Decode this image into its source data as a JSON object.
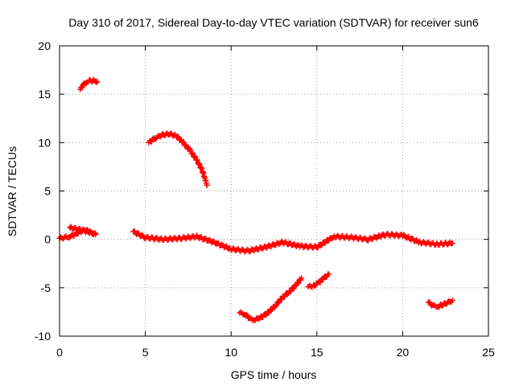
{
  "chart_data": {
    "type": "scatter",
    "title": "Day 310 of 2017, Sidereal Day-to-day VTEC variation (SDTVAR) for receiver sun6",
    "xlabel": "GPS time / hours",
    "ylabel": "SDTVAR / TECUs",
    "xlim": [
      0,
      25
    ],
    "ylim": [
      -10,
      20
    ],
    "xticks": [
      0,
      5,
      10,
      15,
      20,
      25
    ],
    "yticks": [
      -10,
      -5,
      0,
      5,
      10,
      15,
      20
    ],
    "grid": true,
    "marker": "plus",
    "color": "#ff0000",
    "series": [
      {
        "name": "segment-1",
        "x": [
          1.2,
          1.4,
          1.6,
          1.8,
          2.0,
          2.2
        ],
        "y": [
          15.5,
          16.0,
          16.3,
          16.4,
          16.4,
          16.3
        ]
      },
      {
        "name": "segment-2",
        "x": [
          5.2,
          5.6,
          6.0,
          6.4,
          6.8,
          7.2,
          7.6,
          8.0,
          8.3,
          8.6
        ],
        "y": [
          10.0,
          10.5,
          10.8,
          10.9,
          10.7,
          10.0,
          9.2,
          8.2,
          7.2,
          5.6
        ]
      },
      {
        "name": "segment-3a",
        "x": [
          0.0,
          0.3,
          0.6,
          0.9,
          1.2,
          1.5,
          1.8,
          2.1
        ],
        "y": [
          0.1,
          0.2,
          0.3,
          0.5,
          0.8,
          1.0,
          0.7,
          0.5
        ]
      },
      {
        "name": "segment-3b",
        "x": [
          0.6,
          1.0,
          1.4,
          1.8,
          2.1
        ],
        "y": [
          1.2,
          1.1,
          0.9,
          0.7,
          0.6
        ]
      },
      {
        "name": "segment-4",
        "x": [
          4.3,
          5.0,
          6.0,
          7.0,
          8.0,
          9.0,
          10.0,
          11.0,
          12.0,
          13.0,
          14.0,
          15.0,
          16.0,
          17.0,
          18.0,
          19.0,
          20.0,
          21.0,
          22.0,
          22.9
        ],
        "y": [
          0.8,
          0.2,
          0.0,
          0.1,
          0.3,
          -0.3,
          -1.0,
          -1.2,
          -0.8,
          -0.3,
          -0.7,
          -0.8,
          0.3,
          0.2,
          0.0,
          0.5,
          0.4,
          -0.3,
          -0.5,
          -0.4
        ]
      },
      {
        "name": "segment-5",
        "x": [
          10.5,
          10.8,
          11.1,
          11.4,
          11.8,
          12.2,
          12.6,
          13.0,
          13.4,
          13.8,
          14.1
        ],
        "y": [
          -7.6,
          -7.7,
          -8.2,
          -8.3,
          -8.0,
          -7.5,
          -6.8,
          -6.0,
          -5.4,
          -4.7,
          -4.0
        ]
      },
      {
        "name": "segment-6",
        "x": [
          14.5,
          14.8,
          15.1,
          15.4,
          15.7
        ],
        "y": [
          -4.9,
          -4.8,
          -4.5,
          -4.0,
          -3.6
        ]
      },
      {
        "name": "segment-7",
        "x": [
          21.5,
          21.8,
          22.1,
          22.4,
          22.7,
          22.9
        ],
        "y": [
          -6.5,
          -6.9,
          -6.9,
          -6.7,
          -6.5,
          -6.3
        ]
      }
    ]
  }
}
